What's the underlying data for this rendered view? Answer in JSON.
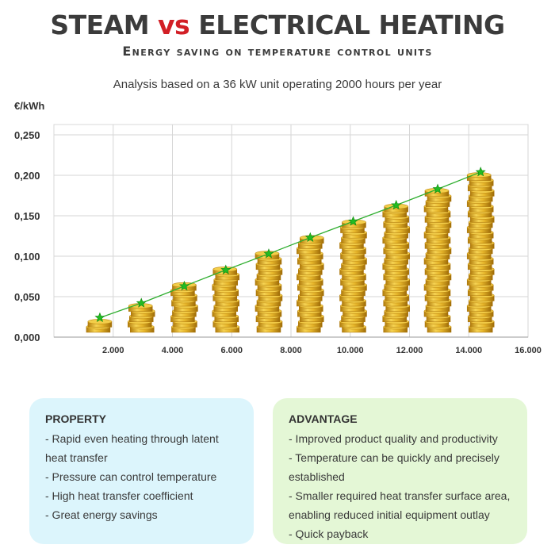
{
  "header": {
    "title_part1": "STEAM",
    "title_vs": "vs",
    "title_part2": "ELECTRICAL HEATING",
    "subtitle": "Energy saving on temperature control units",
    "analysis": "Analysis based on a 36 kW unit operating 2000 hours per year"
  },
  "colors": {
    "title": "#3b3b3b",
    "vs_accent": "#d21f26",
    "trend_line": "#2fae2f",
    "star": "#22bb22",
    "coin": "#e6b52a",
    "property_bg": "#dcf5fc",
    "advantage_bg": "#e4f7d6"
  },
  "chart_data": {
    "type": "scatter",
    "marker": "stacked-coins",
    "trendline": true,
    "ylabel": "€/kWh",
    "xlabel": "",
    "xlim": [
      0,
      16000
    ],
    "ylim": [
      0,
      0.25
    ],
    "x_ticks": [
      "2.000",
      "4.000",
      "6.000",
      "8.000",
      "10.000",
      "12.000",
      "14.000",
      "16.000"
    ],
    "x_tick_values": [
      2000,
      4000,
      6000,
      8000,
      10000,
      12000,
      14000,
      16000
    ],
    "y_ticks": [
      "0,000",
      "0,050",
      "0,100",
      "0,150",
      "0,200",
      "0,250"
    ],
    "y_tick_values": [
      0,
      0.05,
      0.1,
      0.15,
      0.2,
      0.25
    ],
    "grid": true,
    "series": [
      {
        "points": [
          {
            "x": 1550,
            "y": 0.024
          },
          {
            "x": 2950,
            "y": 0.042
          },
          {
            "x": 4400,
            "y": 0.063
          },
          {
            "x": 5800,
            "y": 0.083
          },
          {
            "x": 7250,
            "y": 0.103
          },
          {
            "x": 8650,
            "y": 0.123
          },
          {
            "x": 10100,
            "y": 0.143
          },
          {
            "x": 11550,
            "y": 0.163
          },
          {
            "x": 12950,
            "y": 0.183
          },
          {
            "x": 14400,
            "y": 0.204
          }
        ]
      }
    ]
  },
  "property": {
    "heading": "PROPERTY",
    "items": [
      " - Rapid even heating through latent",
      "heat transfer",
      " - Pressure can control temperature",
      " - High heat transfer coefficient",
      " - Great energy savings"
    ]
  },
  "advantage": {
    "heading": "ADVANTAGE",
    "items": [
      " - Improved product quality and productivity",
      " - Temperature can be quickly and precisely",
      "established",
      " - Smaller required heat transfer surface area,",
      "enabling reduced initial equipment outlay",
      " - Quick payback"
    ]
  }
}
